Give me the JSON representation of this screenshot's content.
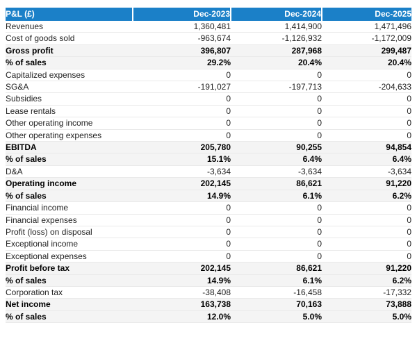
{
  "colors": {
    "header_bg": "#1b80c8",
    "summary_bg": "#f4f4f4",
    "header_text": "#ffffff"
  },
  "table": {
    "title": "P&L (£)",
    "columns": [
      "Dec-2023",
      "Dec-2024",
      "Dec-2025"
    ],
    "rows": [
      {
        "label": "Revenues",
        "values": [
          "1,360,481",
          "1,414,900",
          "1,471,496"
        ],
        "emphasis": false
      },
      {
        "label": "Cost of goods sold",
        "values": [
          "-963,674",
          "-1,126,932",
          "-1,172,009"
        ],
        "emphasis": false
      },
      {
        "label": "Gross profit",
        "values": [
          "396,807",
          "287,968",
          "299,487"
        ],
        "emphasis": true
      },
      {
        "label": "% of sales",
        "values": [
          "29.2%",
          "20.4%",
          "20.4%"
        ],
        "emphasis": true
      },
      {
        "label": "Capitalized expenses",
        "values": [
          "0",
          "0",
          "0"
        ],
        "emphasis": false
      },
      {
        "label": "SG&A",
        "values": [
          "-191,027",
          "-197,713",
          "-204,633"
        ],
        "emphasis": false
      },
      {
        "label": "Subsidies",
        "values": [
          "0",
          "0",
          "0"
        ],
        "emphasis": false
      },
      {
        "label": "Lease rentals",
        "values": [
          "0",
          "0",
          "0"
        ],
        "emphasis": false
      },
      {
        "label": "Other operating income",
        "values": [
          "0",
          "0",
          "0"
        ],
        "emphasis": false
      },
      {
        "label": "Other operating expenses",
        "values": [
          "0",
          "0",
          "0"
        ],
        "emphasis": false
      },
      {
        "label": "EBITDA",
        "values": [
          "205,780",
          "90,255",
          "94,854"
        ],
        "emphasis": true
      },
      {
        "label": "% of sales",
        "values": [
          "15.1%",
          "6.4%",
          "6.4%"
        ],
        "emphasis": true
      },
      {
        "label": "D&A",
        "values": [
          "-3,634",
          "-3,634",
          "-3,634"
        ],
        "emphasis": false
      },
      {
        "label": "Operating income",
        "values": [
          "202,145",
          "86,621",
          "91,220"
        ],
        "emphasis": true
      },
      {
        "label": "% of sales",
        "values": [
          "14.9%",
          "6.1%",
          "6.2%"
        ],
        "emphasis": true
      },
      {
        "label": "Financial income",
        "values": [
          "0",
          "0",
          "0"
        ],
        "emphasis": false
      },
      {
        "label": "Financial expenses",
        "values": [
          "0",
          "0",
          "0"
        ],
        "emphasis": false
      },
      {
        "label": "Profit (loss) on disposal",
        "values": [
          "0",
          "0",
          "0"
        ],
        "emphasis": false
      },
      {
        "label": "Exceptional income",
        "values": [
          "0",
          "0",
          "0"
        ],
        "emphasis": false
      },
      {
        "label": "Exceptional expenses",
        "values": [
          "0",
          "0",
          "0"
        ],
        "emphasis": false
      },
      {
        "label": "Profit before tax",
        "values": [
          "202,145",
          "86,621",
          "91,220"
        ],
        "emphasis": true
      },
      {
        "label": "% of sales",
        "values": [
          "14.9%",
          "6.1%",
          "6.2%"
        ],
        "emphasis": true
      },
      {
        "label": "Corporation tax",
        "values": [
          "-38,408",
          "-16,458",
          "-17,332"
        ],
        "emphasis": false
      },
      {
        "label": "Net income",
        "values": [
          "163,738",
          "70,163",
          "73,888"
        ],
        "emphasis": true
      },
      {
        "label": "% of sales",
        "values": [
          "12.0%",
          "5.0%",
          "5.0%"
        ],
        "emphasis": true
      }
    ]
  }
}
